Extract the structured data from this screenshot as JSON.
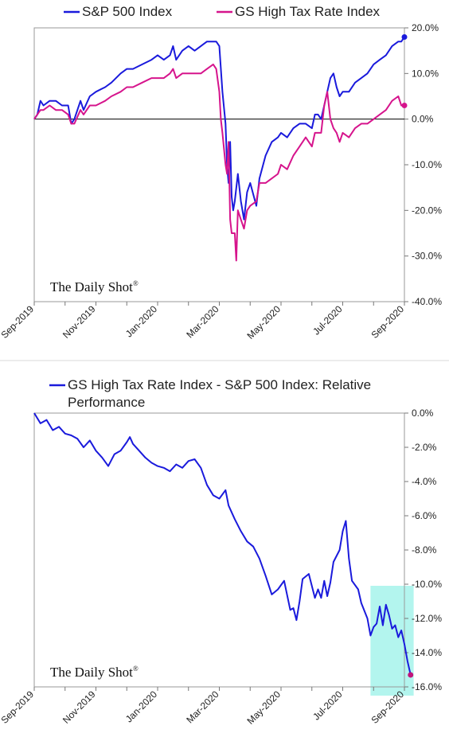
{
  "watermark": "The Daily Shot",
  "watermark_mark": "®",
  "colors": {
    "sp500": "#1a1adc",
    "high_tax": "#d6148c",
    "relative": "#1a1adc",
    "endpoint": "#c0157a",
    "highlight": "#b3f5ee",
    "zero_line": "#000000",
    "frame": "#9a9a9a"
  },
  "chart_data": [
    {
      "type": "line",
      "legend_placement": "top",
      "legend": [
        "S&P 500 Index",
        "GS High Tax Rate Index"
      ],
      "ylim": [
        -40,
        20
      ],
      "ytick_values": [
        20,
        10,
        0,
        -10,
        -20,
        -30,
        -40
      ],
      "ytick_labels": [
        "20.0%",
        "10.0%",
        "0.0%",
        "-10.0%",
        "-20.0%",
        "-30.0%",
        "-40.0%"
      ],
      "xlim": [
        0,
        12
      ],
      "xtick_values": [
        0,
        2,
        4,
        6,
        8,
        10,
        12
      ],
      "xtick_labels": [
        "Sep-2019",
        "Nov-2019",
        "Jan-2020",
        "Mar-2020",
        "May-2020",
        "Jul-2020",
        "Sep-2020"
      ],
      "series": [
        {
          "name": "S&P 500 Index",
          "points": [
            [
              0.0,
              0
            ],
            [
              0.1,
              1
            ],
            [
              0.2,
              4
            ],
            [
              0.3,
              3
            ],
            [
              0.5,
              4
            ],
            [
              0.7,
              4
            ],
            [
              0.9,
              3
            ],
            [
              1.1,
              3
            ],
            [
              1.2,
              -1
            ],
            [
              1.3,
              0
            ],
            [
              1.5,
              4
            ],
            [
              1.6,
              2
            ],
            [
              1.8,
              5
            ],
            [
              2.0,
              6
            ],
            [
              2.3,
              7
            ],
            [
              2.5,
              8
            ],
            [
              2.8,
              10
            ],
            [
              3.0,
              11
            ],
            [
              3.2,
              11
            ],
            [
              3.5,
              12
            ],
            [
              3.8,
              13
            ],
            [
              4.0,
              14
            ],
            [
              4.2,
              13
            ],
            [
              4.4,
              14
            ],
            [
              4.5,
              16
            ],
            [
              4.6,
              13
            ],
            [
              4.8,
              15
            ],
            [
              5.0,
              16
            ],
            [
              5.2,
              15
            ],
            [
              5.4,
              16
            ],
            [
              5.6,
              17
            ],
            [
              5.8,
              17
            ],
            [
              5.9,
              17
            ],
            [
              6.0,
              16
            ],
            [
              6.1,
              6
            ],
            [
              6.2,
              -1
            ],
            [
              6.25,
              -10
            ],
            [
              6.3,
              -14
            ],
            [
              6.35,
              -5
            ],
            [
              6.4,
              -17
            ],
            [
              6.45,
              -20
            ],
            [
              6.5,
              -18
            ],
            [
              6.6,
              -12
            ],
            [
              6.7,
              -18
            ],
            [
              6.8,
              -22
            ],
            [
              6.9,
              -16
            ],
            [
              7.0,
              -14
            ],
            [
              7.2,
              -19
            ],
            [
              7.3,
              -13
            ],
            [
              7.5,
              -8
            ],
            [
              7.7,
              -5
            ],
            [
              7.9,
              -4
            ],
            [
              8.0,
              -3
            ],
            [
              8.2,
              -4
            ],
            [
              8.4,
              -2
            ],
            [
              8.6,
              -1
            ],
            [
              8.8,
              -1
            ],
            [
              9.0,
              -2
            ],
            [
              9.1,
              1
            ],
            [
              9.2,
              1
            ],
            [
              9.3,
              0
            ],
            [
              9.4,
              3
            ],
            [
              9.5,
              6
            ],
            [
              9.6,
              9
            ],
            [
              9.7,
              10
            ],
            [
              9.8,
              7
            ],
            [
              9.9,
              5
            ],
            [
              10.0,
              6
            ],
            [
              10.2,
              6
            ],
            [
              10.4,
              8
            ],
            [
              10.6,
              9
            ],
            [
              10.8,
              10
            ],
            [
              11.0,
              12
            ],
            [
              11.2,
              13
            ],
            [
              11.4,
              14
            ],
            [
              11.6,
              16
            ],
            [
              11.8,
              17
            ],
            [
              11.9,
              17
            ],
            [
              12.0,
              18
            ]
          ]
        },
        {
          "name": "GS High Tax Rate Index",
          "points": [
            [
              0.0,
              0
            ],
            [
              0.1,
              1
            ],
            [
              0.2,
              2
            ],
            [
              0.3,
              2
            ],
            [
              0.5,
              3
            ],
            [
              0.7,
              2
            ],
            [
              0.9,
              2
            ],
            [
              1.1,
              1
            ],
            [
              1.2,
              -1
            ],
            [
              1.3,
              -1
            ],
            [
              1.5,
              2
            ],
            [
              1.6,
              1
            ],
            [
              1.8,
              3
            ],
            [
              2.0,
              3
            ],
            [
              2.3,
              4
            ],
            [
              2.5,
              5
            ],
            [
              2.8,
              6
            ],
            [
              3.0,
              7
            ],
            [
              3.2,
              7
            ],
            [
              3.5,
              8
            ],
            [
              3.8,
              9
            ],
            [
              4.0,
              9
            ],
            [
              4.2,
              9
            ],
            [
              4.4,
              10
            ],
            [
              4.5,
              11
            ],
            [
              4.6,
              9
            ],
            [
              4.8,
              10
            ],
            [
              5.0,
              10
            ],
            [
              5.2,
              10
            ],
            [
              5.4,
              10
            ],
            [
              5.6,
              11
            ],
            [
              5.8,
              12
            ],
            [
              5.9,
              11
            ],
            [
              6.0,
              6
            ],
            [
              6.05,
              0
            ],
            [
              6.1,
              -3
            ],
            [
              6.2,
              -10
            ],
            [
              6.25,
              -12
            ],
            [
              6.3,
              -5
            ],
            [
              6.35,
              -22
            ],
            [
              6.4,
              -25
            ],
            [
              6.5,
              -25
            ],
            [
              6.55,
              -31
            ],
            [
              6.6,
              -20
            ],
            [
              6.7,
              -22
            ],
            [
              6.8,
              -24
            ],
            [
              6.9,
              -20
            ],
            [
              7.0,
              -19
            ],
            [
              7.2,
              -18
            ],
            [
              7.3,
              -14
            ],
            [
              7.5,
              -14
            ],
            [
              7.7,
              -13
            ],
            [
              7.9,
              -12
            ],
            [
              8.0,
              -10
            ],
            [
              8.2,
              -11
            ],
            [
              8.4,
              -8
            ],
            [
              8.6,
              -6
            ],
            [
              8.8,
              -4
            ],
            [
              9.0,
              -6
            ],
            [
              9.1,
              -3
            ],
            [
              9.2,
              -3
            ],
            [
              9.3,
              -3
            ],
            [
              9.4,
              3
            ],
            [
              9.5,
              6
            ],
            [
              9.6,
              0
            ],
            [
              9.7,
              -2
            ],
            [
              9.8,
              -3
            ],
            [
              9.9,
              -5
            ],
            [
              10.0,
              -3
            ],
            [
              10.2,
              -4
            ],
            [
              10.4,
              -2
            ],
            [
              10.6,
              -1
            ],
            [
              10.8,
              -1
            ],
            [
              11.0,
              0
            ],
            [
              11.2,
              1
            ],
            [
              11.4,
              2
            ],
            [
              11.6,
              4
            ],
            [
              11.8,
              5
            ],
            [
              11.9,
              3
            ],
            [
              12.0,
              3
            ]
          ]
        }
      ]
    },
    {
      "type": "line",
      "title": "GS High Tax Rate Index - S&P 500 Index:   Relative Performance",
      "legend_placement": "top",
      "legend": [
        "GS High Tax Rate Index - S&P 500 Index:   Relative",
        "Performance"
      ],
      "ylim": [
        -16,
        0
      ],
      "ytick_values": [
        0,
        -2,
        -4,
        -6,
        -8,
        -10,
        -12,
        -14,
        -16
      ],
      "ytick_labels": [
        "0.0%",
        "-2.0%",
        "-4.0%",
        "-6.0%",
        "-8.0%",
        "-10.0%",
        "-12.0%",
        "-14.0%",
        "-16.0%"
      ],
      "xlim": [
        0,
        12
      ],
      "xtick_values": [
        0,
        2,
        4,
        6,
        8,
        10,
        12
      ],
      "xtick_labels": [
        "Sep-2019",
        "Nov-2019",
        "Jan-2020",
        "Mar-2020",
        "May-2020",
        "Jul-2020",
        "Sep-2020"
      ],
      "highlight_range_x": [
        10.9,
        12.3
      ],
      "series": [
        {
          "name": "GS High Tax Rate Index - S&P 500 Index",
          "points": [
            [
              0.0,
              0
            ],
            [
              0.2,
              -0.6
            ],
            [
              0.4,
              -0.4
            ],
            [
              0.6,
              -1.0
            ],
            [
              0.8,
              -0.8
            ],
            [
              1.0,
              -1.2
            ],
            [
              1.2,
              -1.3
            ],
            [
              1.4,
              -1.5
            ],
            [
              1.6,
              -2.0
            ],
            [
              1.8,
              -1.6
            ],
            [
              2.0,
              -2.2
            ],
            [
              2.2,
              -2.6
            ],
            [
              2.4,
              -3.1
            ],
            [
              2.6,
              -2.4
            ],
            [
              2.8,
              -2.2
            ],
            [
              3.0,
              -1.7
            ],
            [
              3.1,
              -1.4
            ],
            [
              3.2,
              -1.8
            ],
            [
              3.4,
              -2.2
            ],
            [
              3.6,
              -2.6
            ],
            [
              3.8,
              -2.9
            ],
            [
              4.0,
              -3.1
            ],
            [
              4.2,
              -3.2
            ],
            [
              4.4,
              -3.4
            ],
            [
              4.6,
              -3.0
            ],
            [
              4.8,
              -3.2
            ],
            [
              5.0,
              -2.8
            ],
            [
              5.2,
              -2.7
            ],
            [
              5.4,
              -3.2
            ],
            [
              5.6,
              -4.2
            ],
            [
              5.8,
              -4.8
            ],
            [
              6.0,
              -5.0
            ],
            [
              6.2,
              -4.5
            ],
            [
              6.3,
              -5.4
            ],
            [
              6.5,
              -6.2
            ],
            [
              6.7,
              -6.9
            ],
            [
              6.9,
              -7.5
            ],
            [
              7.1,
              -7.8
            ],
            [
              7.3,
              -8.5
            ],
            [
              7.5,
              -9.5
            ],
            [
              7.7,
              -10.6
            ],
            [
              7.9,
              -10.3
            ],
            [
              8.1,
              -9.8
            ],
            [
              8.3,
              -11.5
            ],
            [
              8.4,
              -11.4
            ],
            [
              8.5,
              -12.1
            ],
            [
              8.6,
              -11.0
            ],
            [
              8.7,
              -9.7
            ],
            [
              8.9,
              -9.4
            ],
            [
              9.1,
              -10.8
            ],
            [
              9.2,
              -10.3
            ],
            [
              9.3,
              -10.8
            ],
            [
              9.4,
              -9.8
            ],
            [
              9.5,
              -10.7
            ],
            [
              9.6,
              -9.9
            ],
            [
              9.7,
              -8.7
            ],
            [
              9.9,
              -8.0
            ],
            [
              10.0,
              -6.9
            ],
            [
              10.1,
              -6.3
            ],
            [
              10.2,
              -8.5
            ],
            [
              10.3,
              -9.8
            ],
            [
              10.5,
              -10.3
            ],
            [
              10.6,
              -11.1
            ],
            [
              10.8,
              -12.0
            ],
            [
              10.9,
              -13.0
            ],
            [
              11.0,
              -12.5
            ],
            [
              11.1,
              -12.3
            ],
            [
              11.2,
              -11.3
            ],
            [
              11.3,
              -12.4
            ],
            [
              11.4,
              -11.2
            ],
            [
              11.5,
              -11.8
            ],
            [
              11.6,
              -12.6
            ],
            [
              11.7,
              -12.4
            ],
            [
              11.8,
              -13.1
            ],
            [
              11.9,
              -12.7
            ],
            [
              12.0,
              -13.5
            ],
            [
              12.1,
              -14.5
            ],
            [
              12.2,
              -15.3
            ]
          ]
        }
      ]
    }
  ]
}
